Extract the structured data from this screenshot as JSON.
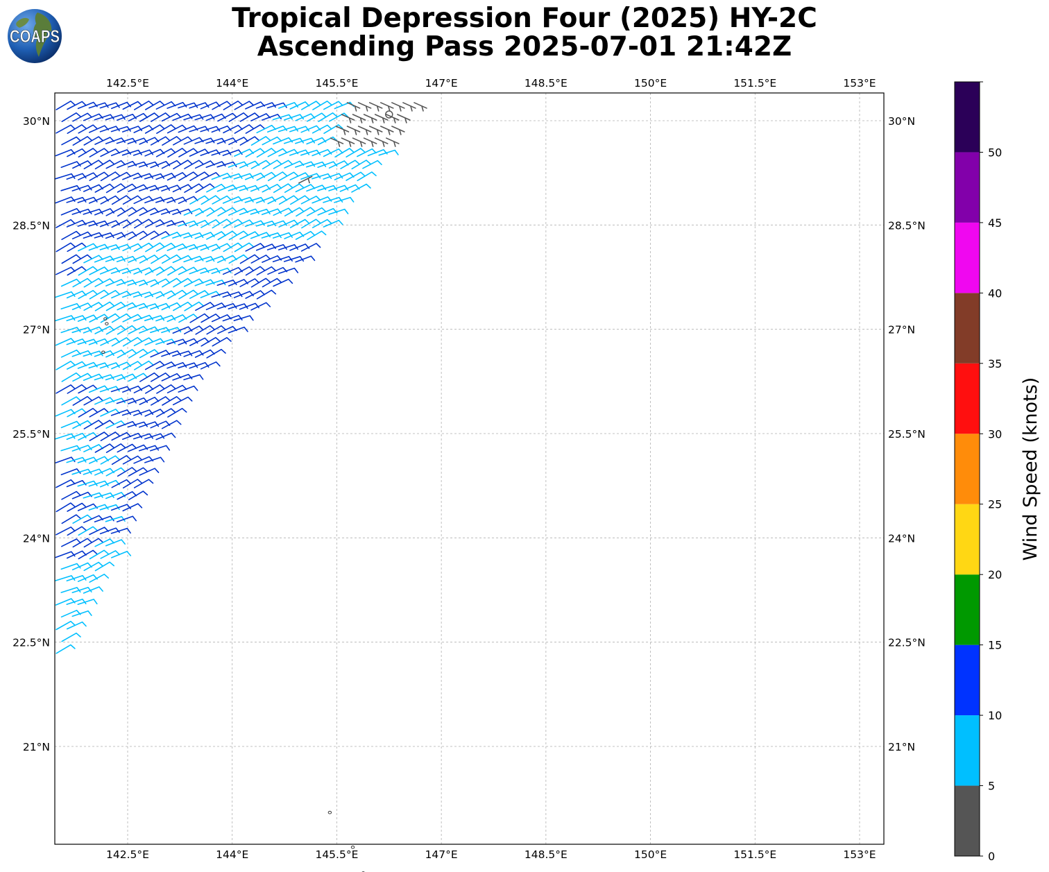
{
  "header": {
    "title_line1": "Tropical Depression Four (2025) HY-2C",
    "title_line2": "Ascending Pass 2025-07-01 21:42Z",
    "logo_text": "COAPS"
  },
  "chart_data": {
    "type": "scatter",
    "title": "Tropical Depression Four (2025) HY-2C Ascending Pass 2025-07-01 21:42Z",
    "subtype": "wind-barb map",
    "xlim": [
      141.45,
      153.35
    ],
    "ylim": [
      19.4,
      30.2
    ],
    "x_ticks": [
      142.5,
      144,
      145.5,
      147,
      148.5,
      150,
      151.5,
      153
    ],
    "x_tick_labels": [
      "142.5°E",
      "144°E",
      "145.5°E",
      "147°E",
      "148.5°E",
      "150°E",
      "151.5°E",
      "153°E"
    ],
    "y_ticks": [
      30,
      28.5,
      27,
      25.5,
      24,
      22.5,
      21
    ],
    "y_tick_labels": [
      "30°N",
      "28.5°N",
      "27°N",
      "25.5°N",
      "24°N",
      "22.5°N",
      "21°N"
    ],
    "grid": true,
    "swath": {
      "edge_top": [
        [
          141.55,
          30.2
        ],
        [
          146.7,
          30.2
        ]
      ],
      "edge_east": [
        [
          146.7,
          30.2
        ],
        [
          145.5,
          28.55
        ],
        [
          143.6,
          26.4
        ],
        [
          142.4,
          23.8
        ],
        [
          141.55,
          22.05
        ]
      ],
      "description_rows": []
    },
    "barbs": {
      "speed_units": "knots",
      "regions": [
        {
          "speed_class": "5-10",
          "color": "#00bfff"
        },
        {
          "speed_class": "10-15",
          "color": "#0033cc"
        },
        {
          "speed_class": "0-5",
          "color": "#555555"
        }
      ]
    },
    "islands": [
      [
        142.18,
        27.15
      ],
      [
        142.2,
        27.08
      ],
      [
        142.15,
        26.67
      ],
      [
        145.4,
        20.05
      ],
      [
        145.73,
        19.55
      ],
      [
        145.88,
        19.18
      ]
    ],
    "colorbar": {
      "label": "Wind Speed (knots)",
      "bounds": [
        0,
        5,
        10,
        15,
        20,
        25,
        30,
        35,
        40,
        45,
        50,
        55
      ],
      "tick_labels": [
        "0",
        "5",
        "10",
        "15",
        "20",
        "25",
        "30",
        "35",
        "40",
        "45",
        "50"
      ],
      "colors": [
        "#555555",
        "#00bfff",
        "#0033ff",
        "#009900",
        "#ffd714",
        "#ff8c0a",
        "#ff0f0f",
        "#823c28",
        "#f007f0",
        "#8200aa",
        "#2b0058"
      ]
    }
  }
}
